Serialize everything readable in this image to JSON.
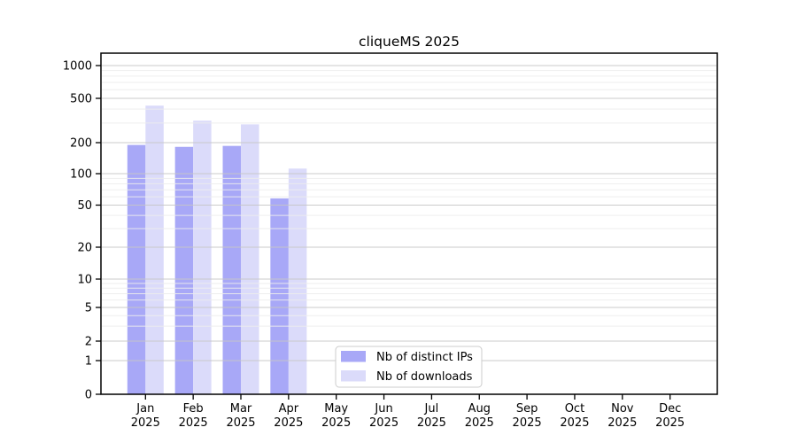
{
  "chart_data": {
    "type": "bar",
    "title": "cliqueMS 2025",
    "categories": [
      "Jan 2025",
      "Feb 2025",
      "Mar 2025",
      "Apr 2025",
      "May 2025",
      "Jun 2025",
      "Jul 2025",
      "Aug 2025",
      "Sep 2025",
      "Oct 2025",
      "Nov 2025",
      "Dec 2025"
    ],
    "series": [
      {
        "name": "Nb of distinct IPs",
        "color": "#a8a8f7",
        "values": [
          190,
          182,
          186,
          58,
          0,
          0,
          0,
          0,
          0,
          0,
          0,
          0
        ]
      },
      {
        "name": "Nb of downloads",
        "color": "#dbdbfa",
        "values": [
          430,
          315,
          292,
          112,
          0,
          0,
          0,
          0,
          0,
          0,
          0,
          0
        ]
      }
    ],
    "xlabel": "",
    "ylabel": "",
    "yscale": "symlog",
    "yticks": [
      0,
      1,
      2,
      5,
      10,
      20,
      50,
      100,
      200,
      500,
      1000
    ],
    "ylim": [
      0,
      1400
    ],
    "grid": true,
    "legend_position": "lower center"
  },
  "colors": {
    "series_distinct_ips": "#a8a8f7",
    "series_downloads": "#dbdbfa",
    "major_grid": "#c6c6c6",
    "minor_grid": "#ededed",
    "axis": "#000000",
    "legend_border": "#cccccc",
    "background": "#ffffff"
  }
}
